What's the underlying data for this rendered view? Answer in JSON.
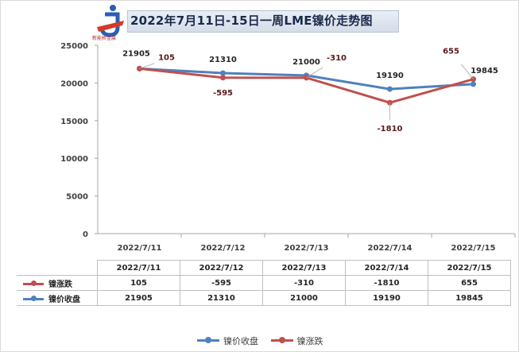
{
  "title": "2022年7月11日-15日一周LME镍价走势图",
  "logo_text": "新能桥金属",
  "colors": {
    "close": "#4f81bd",
    "change": "#c0504d"
  },
  "chart_data": {
    "type": "line",
    "categories": [
      "2022/7/11",
      "2022/7/12",
      "2022/7/13",
      "2022/7/14",
      "2022/7/15"
    ],
    "ylim": [
      0,
      25000
    ],
    "yticks": [
      "0",
      "5000",
      "10000",
      "15000",
      "20000",
      "25000"
    ],
    "series": [
      {
        "name": "镍价收盘",
        "values": [
          21905,
          21310,
          21000,
          19190,
          19845
        ]
      },
      {
        "name": "镍涨跌",
        "values": [
          105,
          -595,
          -310,
          -1810,
          655
        ]
      }
    ],
    "grid": false,
    "legend": "bottom"
  },
  "table": {
    "header": [
      "2022/7/11",
      "2022/7/12",
      "2022/7/13",
      "2022/7/14",
      "2022/7/15"
    ],
    "rows": [
      {
        "key": "镍涨跌",
        "cells": [
          "105",
          "-595",
          "-310",
          "-1810",
          "655"
        ]
      },
      {
        "key": "镍价收盘",
        "cells": [
          "21905",
          "21310",
          "21000",
          "19190",
          "19845"
        ]
      }
    ]
  },
  "legend": [
    "镍价收盘",
    "镍涨跌"
  ]
}
